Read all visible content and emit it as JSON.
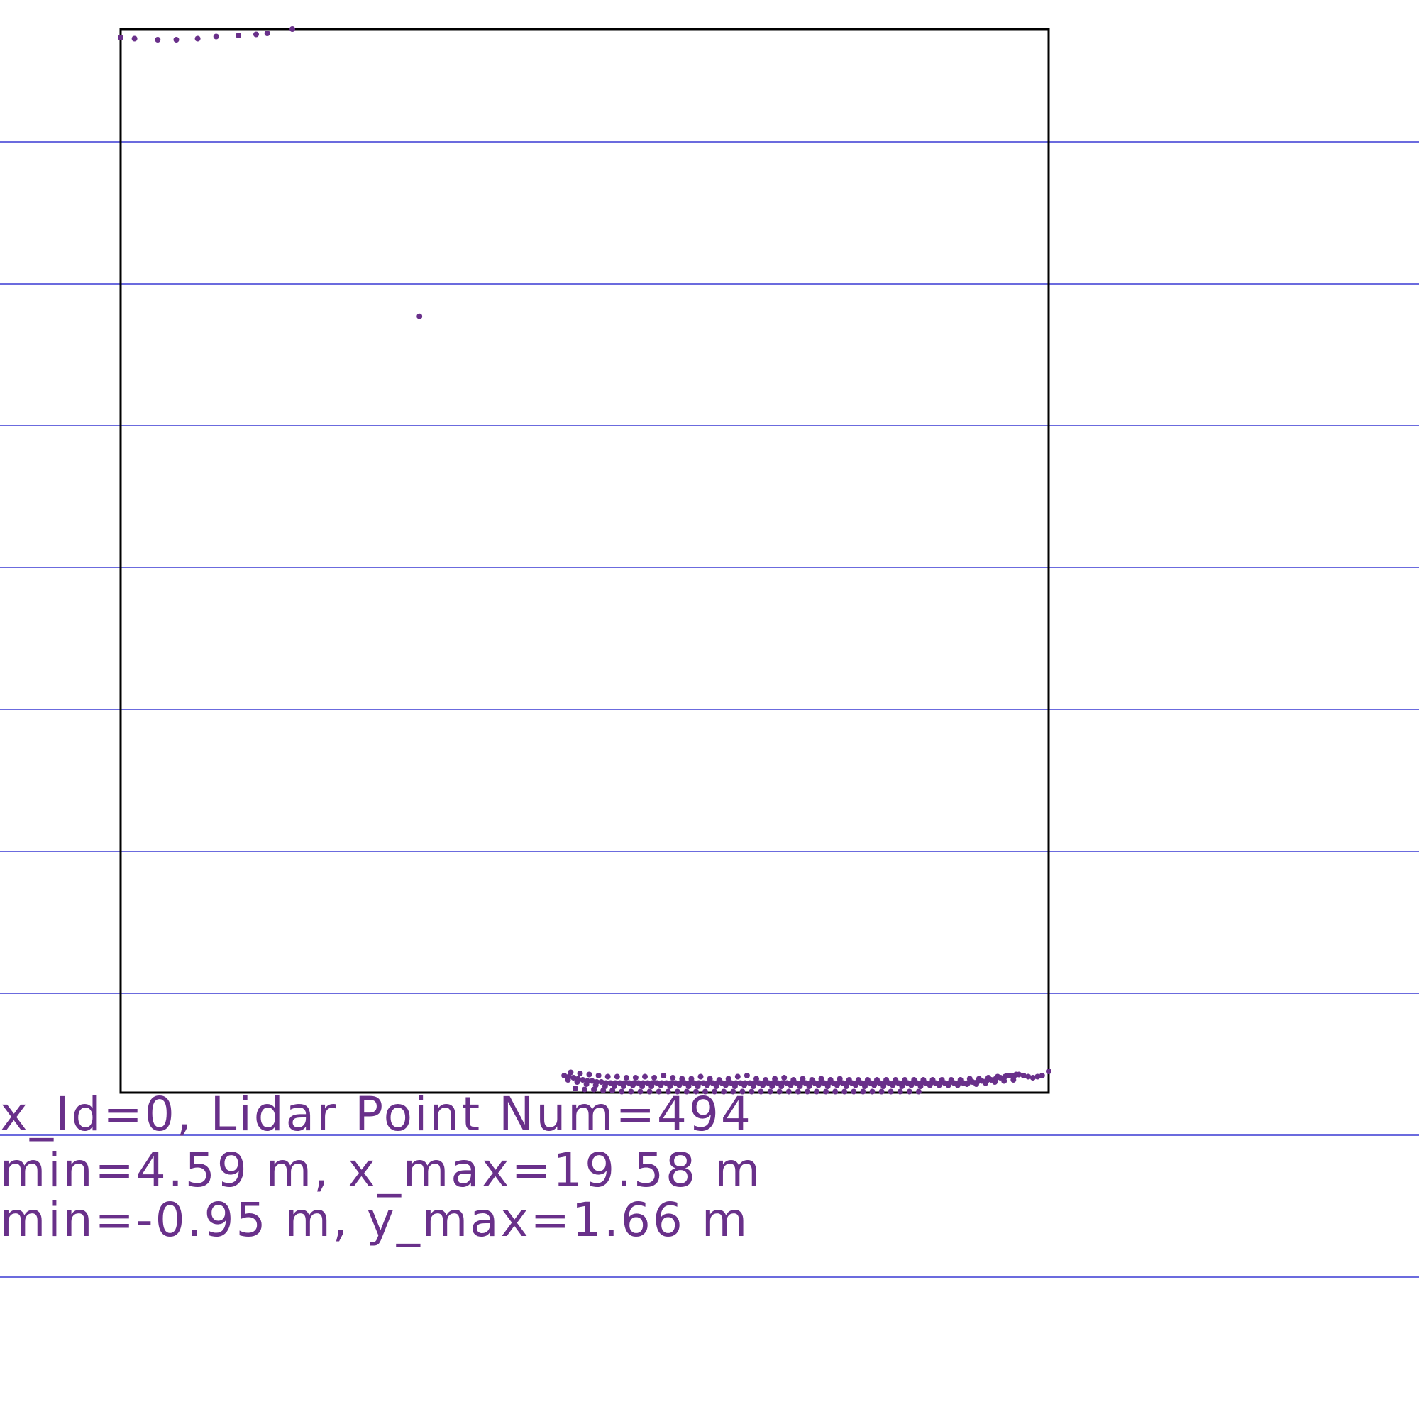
{
  "chart_data": {
    "type": "scatter",
    "title": "",
    "xlabel": "",
    "ylabel": "",
    "grid": true,
    "colors": {
      "points": "#69308a",
      "grid": "#3a3ad4",
      "frame": "#000000",
      "text": "#69308a"
    },
    "info_lines": [
      "x_Id=0, Lidar Point Num=494",
      "min=4.59 m, x_max=19.58 m",
      "min=-0.95 m, y_max=1.66 m"
    ],
    "points": [
      [
        0.0,
        0.992
      ],
      [
        0.015,
        0.991
      ],
      [
        0.04,
        0.99
      ],
      [
        0.06,
        0.99
      ],
      [
        0.083,
        0.991
      ],
      [
        0.103,
        0.993
      ],
      [
        0.127,
        0.994
      ],
      [
        0.146,
        0.995
      ],
      [
        0.158,
        0.996
      ],
      [
        0.185,
        1.0
      ],
      [
        0.322,
        0.73
      ],
      [
        0.478,
        0.016
      ],
      [
        0.483,
        0.015
      ],
      [
        0.488,
        0.014
      ],
      [
        0.493,
        0.013
      ],
      [
        0.498,
        0.012
      ],
      [
        0.503,
        0.011
      ],
      [
        0.508,
        0.011
      ],
      [
        0.513,
        0.01
      ],
      [
        0.518,
        0.01
      ],
      [
        0.523,
        0.009
      ],
      [
        0.528,
        0.009
      ],
      [
        0.533,
        0.009
      ],
      [
        0.538,
        0.009
      ],
      [
        0.543,
        0.009
      ],
      [
        0.548,
        0.009
      ],
      [
        0.553,
        0.009
      ],
      [
        0.558,
        0.009
      ],
      [
        0.563,
        0.009
      ],
      [
        0.568,
        0.009
      ],
      [
        0.573,
        0.009
      ],
      [
        0.578,
        0.009
      ],
      [
        0.583,
        0.009
      ],
      [
        0.588,
        0.009
      ],
      [
        0.593,
        0.009
      ],
      [
        0.598,
        0.009
      ],
      [
        0.603,
        0.009
      ],
      [
        0.608,
        0.009
      ],
      [
        0.613,
        0.009
      ],
      [
        0.618,
        0.009
      ],
      [
        0.623,
        0.009
      ],
      [
        0.628,
        0.009
      ],
      [
        0.633,
        0.009
      ],
      [
        0.638,
        0.009
      ],
      [
        0.643,
        0.009
      ],
      [
        0.648,
        0.009
      ],
      [
        0.653,
        0.009
      ],
      [
        0.658,
        0.009
      ],
      [
        0.663,
        0.009
      ],
      [
        0.668,
        0.009
      ],
      [
        0.673,
        0.009
      ],
      [
        0.678,
        0.009
      ],
      [
        0.683,
        0.009
      ],
      [
        0.688,
        0.009
      ],
      [
        0.693,
        0.009
      ],
      [
        0.698,
        0.009
      ],
      [
        0.703,
        0.009
      ],
      [
        0.708,
        0.009
      ],
      [
        0.713,
        0.009
      ],
      [
        0.718,
        0.009
      ],
      [
        0.723,
        0.009
      ],
      [
        0.728,
        0.009
      ],
      [
        0.733,
        0.009
      ],
      [
        0.738,
        0.009
      ],
      [
        0.743,
        0.009
      ],
      [
        0.748,
        0.009
      ],
      [
        0.753,
        0.009
      ],
      [
        0.758,
        0.009
      ],
      [
        0.763,
        0.009
      ],
      [
        0.768,
        0.009
      ],
      [
        0.773,
        0.009
      ],
      [
        0.778,
        0.009
      ],
      [
        0.783,
        0.009
      ],
      [
        0.788,
        0.009
      ],
      [
        0.793,
        0.009
      ],
      [
        0.798,
        0.009
      ],
      [
        0.803,
        0.009
      ],
      [
        0.808,
        0.009
      ],
      [
        0.813,
        0.009
      ],
      [
        0.818,
        0.009
      ],
      [
        0.823,
        0.009
      ],
      [
        0.828,
        0.009
      ],
      [
        0.833,
        0.009
      ],
      [
        0.838,
        0.009
      ],
      [
        0.843,
        0.009
      ],
      [
        0.848,
        0.009
      ],
      [
        0.853,
        0.009
      ],
      [
        0.858,
        0.009
      ],
      [
        0.863,
        0.009
      ],
      [
        0.868,
        0.009
      ],
      [
        0.873,
        0.009
      ],
      [
        0.878,
        0.009
      ],
      [
        0.883,
        0.009
      ],
      [
        0.888,
        0.009
      ],
      [
        0.893,
        0.009
      ],
      [
        0.898,
        0.009
      ],
      [
        0.903,
        0.009
      ],
      [
        0.908,
        0.009
      ],
      [
        0.913,
        0.009
      ],
      [
        0.918,
        0.01
      ],
      [
        0.923,
        0.01
      ],
      [
        0.928,
        0.011
      ],
      [
        0.933,
        0.011
      ],
      [
        0.938,
        0.012
      ],
      [
        0.943,
        0.013
      ],
      [
        0.948,
        0.014
      ],
      [
        0.953,
        0.015
      ],
      [
        0.958,
        0.016
      ],
      [
        0.963,
        0.016
      ],
      [
        0.968,
        0.017
      ],
      [
        0.973,
        0.016
      ],
      [
        0.978,
        0.015
      ],
      [
        0.983,
        0.014
      ],
      [
        0.988,
        0.015
      ],
      [
        0.993,
        0.016
      ],
      [
        1.0,
        0.02
      ],
      [
        0.482,
        0.012
      ],
      [
        0.492,
        0.01
      ],
      [
        0.502,
        0.008
      ],
      [
        0.512,
        0.007
      ],
      [
        0.522,
        0.006
      ],
      [
        0.532,
        0.006
      ],
      [
        0.542,
        0.006
      ],
      [
        0.552,
        0.007
      ],
      [
        0.562,
        0.006
      ],
      [
        0.572,
        0.006
      ],
      [
        0.582,
        0.007
      ],
      [
        0.592,
        0.006
      ],
      [
        0.602,
        0.007
      ],
      [
        0.612,
        0.006
      ],
      [
        0.622,
        0.006
      ],
      [
        0.632,
        0.007
      ],
      [
        0.642,
        0.006
      ],
      [
        0.652,
        0.007
      ],
      [
        0.662,
        0.006
      ],
      [
        0.672,
        0.007
      ],
      [
        0.682,
        0.006
      ],
      [
        0.692,
        0.007
      ],
      [
        0.702,
        0.006
      ],
      [
        0.712,
        0.006
      ],
      [
        0.722,
        0.007
      ],
      [
        0.732,
        0.006
      ],
      [
        0.742,
        0.006
      ],
      [
        0.752,
        0.007
      ],
      [
        0.762,
        0.006
      ],
      [
        0.772,
        0.007
      ],
      [
        0.782,
        0.006
      ],
      [
        0.792,
        0.007
      ],
      [
        0.802,
        0.006
      ],
      [
        0.812,
        0.007
      ],
      [
        0.822,
        0.006
      ],
      [
        0.832,
        0.007
      ],
      [
        0.842,
        0.006
      ],
      [
        0.852,
        0.007
      ],
      [
        0.862,
        0.006
      ],
      [
        0.872,
        0.007
      ],
      [
        0.882,
        0.007
      ],
      [
        0.892,
        0.007
      ],
      [
        0.902,
        0.007
      ],
      [
        0.912,
        0.008
      ],
      [
        0.922,
        0.008
      ],
      [
        0.932,
        0.009
      ],
      [
        0.942,
        0.01
      ],
      [
        0.952,
        0.011
      ],
      [
        0.962,
        0.012
      ],
      [
        0.485,
        0.019
      ],
      [
        0.495,
        0.018
      ],
      [
        0.505,
        0.017
      ],
      [
        0.515,
        0.016
      ],
      [
        0.525,
        0.015
      ],
      [
        0.535,
        0.015
      ],
      [
        0.545,
        0.014
      ],
      [
        0.555,
        0.014
      ],
      [
        0.565,
        0.015
      ],
      [
        0.575,
        0.014
      ],
      [
        0.585,
        0.016
      ],
      [
        0.595,
        0.014
      ],
      [
        0.605,
        0.013
      ],
      [
        0.615,
        0.013
      ],
      [
        0.625,
        0.015
      ],
      [
        0.635,
        0.013
      ],
      [
        0.645,
        0.012
      ],
      [
        0.655,
        0.013
      ],
      [
        0.665,
        0.015
      ],
      [
        0.675,
        0.016
      ],
      [
        0.685,
        0.013
      ],
      [
        0.695,
        0.012
      ],
      [
        0.705,
        0.013
      ],
      [
        0.715,
        0.014
      ],
      [
        0.725,
        0.012
      ],
      [
        0.735,
        0.013
      ],
      [
        0.745,
        0.012
      ],
      [
        0.755,
        0.013
      ],
      [
        0.765,
        0.012
      ],
      [
        0.775,
        0.013
      ],
      [
        0.785,
        0.012
      ],
      [
        0.795,
        0.012
      ],
      [
        0.805,
        0.012
      ],
      [
        0.815,
        0.012
      ],
      [
        0.825,
        0.012
      ],
      [
        0.835,
        0.012
      ],
      [
        0.845,
        0.012
      ],
      [
        0.855,
        0.012
      ],
      [
        0.865,
        0.012
      ],
      [
        0.875,
        0.012
      ],
      [
        0.885,
        0.012
      ],
      [
        0.895,
        0.012
      ],
      [
        0.905,
        0.012
      ],
      [
        0.915,
        0.013
      ],
      [
        0.925,
        0.013
      ],
      [
        0.935,
        0.014
      ],
      [
        0.945,
        0.015
      ],
      [
        0.955,
        0.016
      ],
      [
        0.965,
        0.017
      ],
      [
        0.49,
        0.004
      ],
      [
        0.5,
        0.003
      ],
      [
        0.51,
        0.003
      ],
      [
        0.52,
        0.002
      ],
      [
        0.53,
        0.002
      ],
      [
        0.54,
        0.001
      ],
      [
        0.55,
        0.001
      ],
      [
        0.56,
        0.001
      ],
      [
        0.57,
        0.001
      ],
      [
        0.58,
        0.001
      ],
      [
        0.59,
        0.001
      ],
      [
        0.6,
        0.001
      ],
      [
        0.61,
        0.001
      ],
      [
        0.62,
        0.001
      ],
      [
        0.63,
        0.001
      ],
      [
        0.64,
        0.001
      ],
      [
        0.65,
        0.001
      ],
      [
        0.66,
        0.001
      ],
      [
        0.67,
        0.001
      ],
      [
        0.68,
        0.001
      ],
      [
        0.69,
        0.001
      ],
      [
        0.7,
        0.001
      ],
      [
        0.71,
        0.001
      ],
      [
        0.72,
        0.001
      ],
      [
        0.73,
        0.001
      ],
      [
        0.74,
        0.001
      ],
      [
        0.75,
        0.001
      ],
      [
        0.76,
        0.001
      ],
      [
        0.77,
        0.001
      ],
      [
        0.78,
        0.001
      ],
      [
        0.79,
        0.001
      ],
      [
        0.8,
        0.001
      ],
      [
        0.81,
        0.001
      ],
      [
        0.82,
        0.001
      ],
      [
        0.83,
        0.001
      ],
      [
        0.84,
        0.001
      ],
      [
        0.85,
        0.001
      ],
      [
        0.86,
        0.001
      ]
    ]
  }
}
